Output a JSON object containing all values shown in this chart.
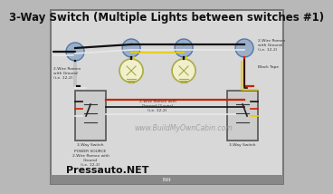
{
  "title": "3-Way Switch (Multiple Lights between switches #1)",
  "title_fontsize": 8.5,
  "title_color": "#111111",
  "bg_color": "#b8b8b8",
  "inner_bg": "#d8d8d8",
  "border_color": "#888888",
  "watermark": "www.BuildMyOwnCabin.com",
  "watermark_color": "#999999",
  "watermark_fontsize": 5.5,
  "footer": "Pressauto.NET",
  "footer_color": "#111111",
  "footer_fontsize": 8,
  "wire_black": "#111111",
  "wire_white": "#e8e8e8",
  "wire_red": "#cc2200",
  "wire_yellow": "#e8cc00",
  "wire_yellow2": "#cccc00",
  "wire_gray": "#888888",
  "wire_blue": "#4466aa",
  "jbox_face": "#9ab0c8",
  "jbox_edge": "#5577aa",
  "switch_face": "#cccccc",
  "switch_edge": "#555555",
  "bulb_face": "#f0f0cc",
  "bulb_edge": "#aaaa44",
  "annot_fontsize": 3.2,
  "annot_color": "#333333",
  "small_fontsize": 3.0,
  "bottom_bar_color": "#888888",
  "edit_color": "#ffffff",
  "lw_wire": 1.2,
  "lw_wire_thick": 1.6
}
